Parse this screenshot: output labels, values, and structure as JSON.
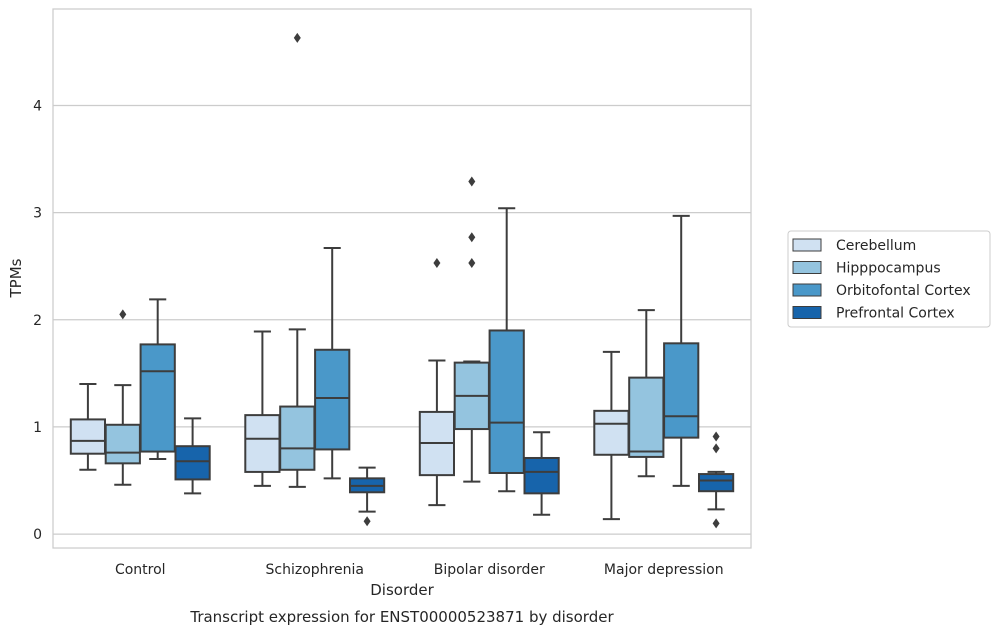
{
  "chart_data": {
    "type": "box",
    "title": "",
    "caption": "Transcript expression for ENST00000523871 by disorder",
    "xlabel": "Disorder",
    "ylabel": "TPMs",
    "ylim": [
      -0.13,
      4.9
    ],
    "yticks": [
      "0",
      "1",
      "2",
      "3",
      "4"
    ],
    "ytick_values": [
      0,
      1,
      2,
      3,
      4
    ],
    "grid": "horizontal",
    "legend_position": "right",
    "categories": [
      "Control",
      "Schizophrenia",
      "Bipolar disorder",
      "Major depression"
    ],
    "series": [
      {
        "name": "Cerebellum",
        "color": "#d0e1f2",
        "boxes": [
          {
            "whislo": 0.6,
            "q1": 0.75,
            "med": 0.87,
            "q3": 1.07,
            "whishi": 1.4,
            "fliers": []
          },
          {
            "whislo": 0.45,
            "q1": 0.58,
            "med": 0.89,
            "q3": 1.11,
            "whishi": 1.89,
            "fliers": []
          },
          {
            "whislo": 0.27,
            "q1": 0.55,
            "med": 0.85,
            "q3": 1.14,
            "whishi": 1.62,
            "fliers": [
              2.53
            ]
          },
          {
            "whislo": 0.14,
            "q1": 0.74,
            "med": 1.03,
            "q3": 1.15,
            "whishi": 1.7,
            "fliers": []
          }
        ]
      },
      {
        "name": "Hipppocampus",
        "color": "#94c4df",
        "boxes": [
          {
            "whislo": 0.46,
            "q1": 0.66,
            "med": 0.76,
            "q3": 1.02,
            "whishi": 1.39,
            "fliers": [
              2.05
            ]
          },
          {
            "whislo": 0.44,
            "q1": 0.6,
            "med": 0.8,
            "q3": 1.19,
            "whishi": 1.91,
            "fliers": [
              4.63
            ]
          },
          {
            "whislo": 0.49,
            "q1": 0.98,
            "med": 1.29,
            "q3": 1.6,
            "whishi": 1.61,
            "fliers": [
              2.53,
              2.77,
              3.29
            ]
          },
          {
            "whislo": 0.54,
            "q1": 0.72,
            "med": 0.77,
            "q3": 1.46,
            "whishi": 2.09,
            "fliers": []
          }
        ]
      },
      {
        "name": "Orbitofontal Cortex",
        "color": "#4a98c9",
        "boxes": [
          {
            "whislo": 0.7,
            "q1": 0.77,
            "med": 1.52,
            "q3": 1.77,
            "whishi": 2.19,
            "fliers": []
          },
          {
            "whislo": 0.52,
            "q1": 0.79,
            "med": 1.27,
            "q3": 1.72,
            "whishi": 2.67,
            "fliers": []
          },
          {
            "whislo": 0.4,
            "q1": 0.57,
            "med": 1.04,
            "q3": 1.9,
            "whishi": 3.04,
            "fliers": []
          },
          {
            "whislo": 0.45,
            "q1": 0.9,
            "med": 1.1,
            "q3": 1.78,
            "whishi": 2.97,
            "fliers": []
          }
        ]
      },
      {
        "name": "Prefrontal Cortex",
        "color": "#1764ab",
        "boxes": [
          {
            "whislo": 0.38,
            "q1": 0.51,
            "med": 0.68,
            "q3": 0.82,
            "whishi": 1.08,
            "fliers": []
          },
          {
            "whislo": 0.21,
            "q1": 0.39,
            "med": 0.45,
            "q3": 0.52,
            "whishi": 0.62,
            "fliers": [
              0.12
            ]
          },
          {
            "whislo": 0.18,
            "q1": 0.38,
            "med": 0.58,
            "q3": 0.71,
            "whishi": 0.95,
            "fliers": []
          },
          {
            "whislo": 0.23,
            "q1": 0.4,
            "med": 0.5,
            "q3": 0.56,
            "whishi": 0.58,
            "fliers": [
              0.1,
              0.8,
              0.91
            ]
          }
        ]
      }
    ]
  }
}
